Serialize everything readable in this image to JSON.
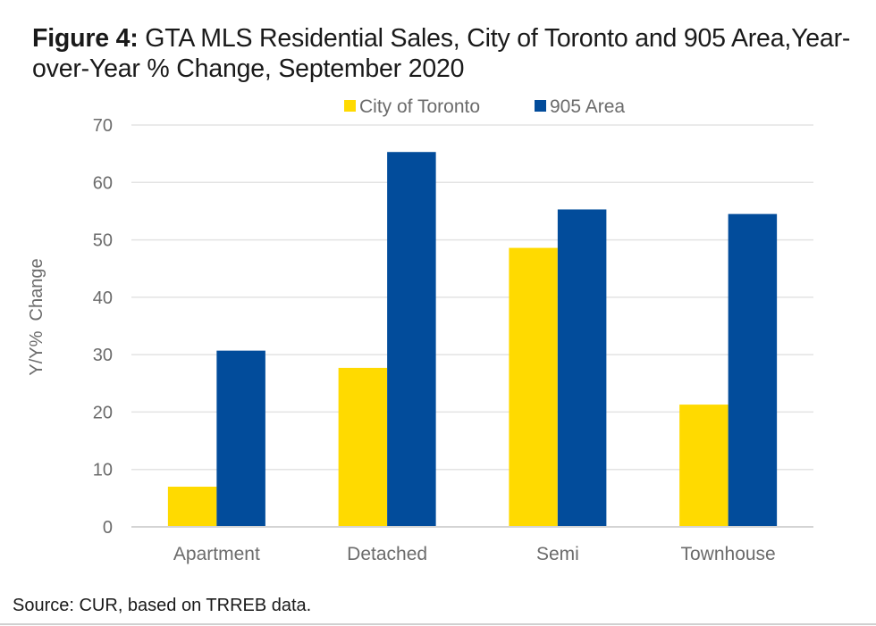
{
  "figure": {
    "title_lead": "Figure 4:",
    "title_rest": " GTA MLS Residential Sales, City of Toronto and 905 Area,Year-over-Year % Change, September 2020",
    "source": "Source: CUR, based on TRREB data."
  },
  "chart_data": {
    "type": "bar",
    "title": "Figure 4: GTA MLS Residential Sales, City of Toronto and 905 Area,Year-over-Year % Change, September 2020",
    "xlabel": "",
    "ylabel": "Y/Y%  Change",
    "categories": [
      "Apartment",
      "Detached",
      "Semi",
      "Townhouse"
    ],
    "series": [
      {
        "name": "City of Toronto",
        "color": "#FFDA00",
        "values": [
          7.0,
          27.7,
          48.6,
          21.3
        ]
      },
      {
        "name": "905 Area",
        "color": "#024C9B",
        "values": [
          30.7,
          65.3,
          55.3,
          54.5
        ]
      }
    ],
    "ylim": [
      0,
      70
    ],
    "yticks": [
      0,
      10,
      20,
      30,
      40,
      50,
      60,
      70
    ],
    "grid": true,
    "legend_position": "top-center",
    "source": "Source: CUR, based on TRREB data."
  }
}
